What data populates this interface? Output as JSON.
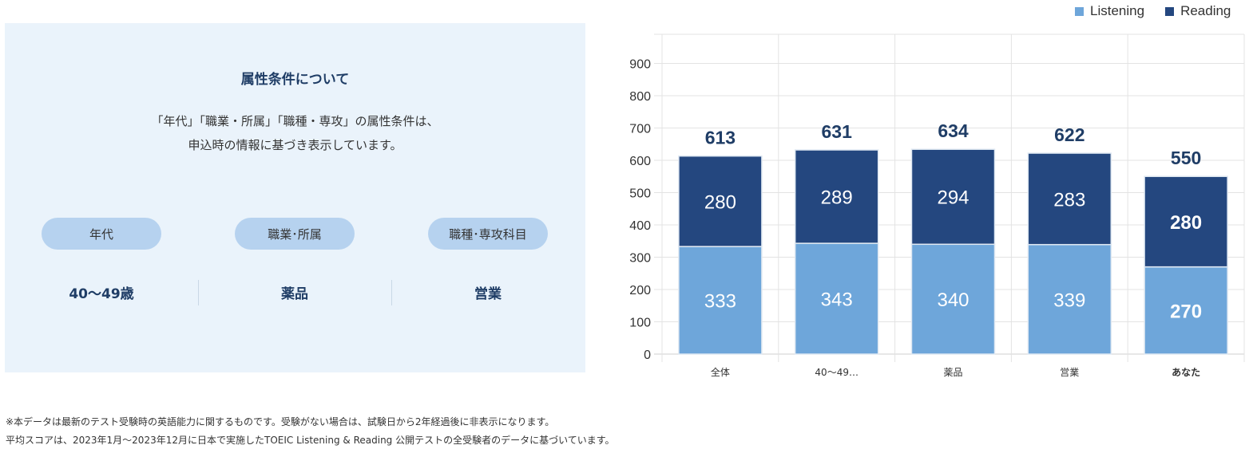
{
  "info": {
    "title": "属性条件について",
    "description_line1": "「年代」「職業・所属」「職種・専攻」の属性条件は、",
    "description_line2": "申込時の情報に基づき表示しています。",
    "attributes": [
      {
        "label": "年代",
        "value": "40〜49歳"
      },
      {
        "label": "職業･所属",
        "value": "薬品"
      },
      {
        "label": "職種･専攻科目",
        "value": "営業"
      }
    ]
  },
  "chart_data": {
    "type": "bar",
    "stacked": true,
    "categories": [
      "全体",
      "40〜49…",
      "薬品",
      "営業",
      "あなた"
    ],
    "series": [
      {
        "name": "Listening",
        "values": [
          333,
          343,
          340,
          339,
          270
        ],
        "color": "#6ea6da"
      },
      {
        "name": "Reading",
        "values": [
          280,
          289,
          294,
          283,
          280
        ],
        "color": "#24477f"
      }
    ],
    "totals": [
      613,
      631,
      634,
      622,
      550
    ],
    "highlight_category": "あなた",
    "ylim": [
      0,
      990
    ],
    "yticks": [
      0,
      100,
      200,
      300,
      400,
      500,
      600,
      700,
      800,
      900
    ],
    "grid": true,
    "legend_position": "top-right"
  },
  "notes": {
    "line1": "※本データは最新のテスト受験時の英語能力に関するものです。受験がない場合は、試験日から2年経過後に非表示になります。",
    "line2": "平均スコアは、2023年1月〜2023年12月に日本で実施したTOEIC Listening & Reading 公開テストの全受験者のデータに基づいています。"
  }
}
